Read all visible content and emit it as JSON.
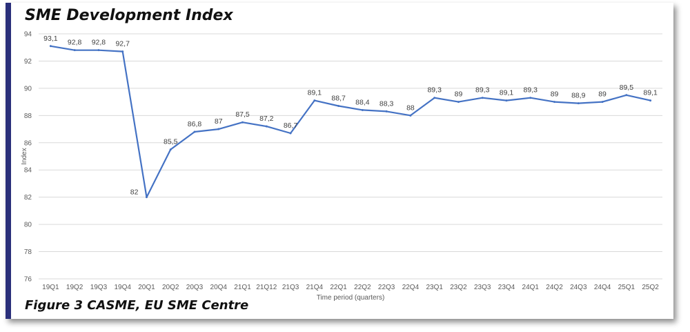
{
  "header": {
    "title": "SME Development Index"
  },
  "footer": {
    "caption": "Figure 3 CASME, EU SME Centre"
  },
  "colors": {
    "line": "#4472c4",
    "accent": "#2a2f7a",
    "grid": "#d9d9d9"
  },
  "chart_data": {
    "type": "line",
    "title": "SME Development Index",
    "xlabel": "Time period (quarters)",
    "ylabel": "Index",
    "ylim": [
      76,
      94
    ],
    "yticks": [
      76,
      78,
      80,
      82,
      84,
      86,
      88,
      90,
      92,
      94
    ],
    "grid": true,
    "categories": [
      "19Q1",
      "19Q2",
      "19Q3",
      "19Q4",
      "20Q1",
      "20Q2",
      "20Q3",
      "20Q4",
      "21Q1",
      "21Q12",
      "21Q3",
      "21Q4",
      "22Q1",
      "22Q2",
      "22Q3",
      "22Q4",
      "23Q1",
      "23Q2",
      "23Q3",
      "23Q4",
      "24Q1",
      "24Q2",
      "24Q3",
      "24Q4",
      "25Q1",
      "25Q2"
    ],
    "series": [
      {
        "values": [
          93.1,
          92.8,
          92.8,
          92.7,
          82,
          85.5,
          86.8,
          87,
          87.5,
          87.2,
          86.7,
          89.1,
          88.7,
          88.4,
          88.3,
          88,
          89.3,
          89,
          89.3,
          89.1,
          89.3,
          89,
          88.9,
          89,
          89.5,
          89.1
        ],
        "labels": [
          "93,1",
          "92,8",
          "92,8",
          "92,7",
          "82",
          "85,5",
          "86,8",
          "87",
          "87,5",
          "87,2",
          "86,7",
          "89,1",
          "88,7",
          "88,4",
          "88,3",
          "88",
          "89,3",
          "89",
          "89,3",
          "89,1",
          "89,3",
          "89",
          "88,9",
          "89",
          "89,5",
          "89,1"
        ]
      }
    ]
  }
}
